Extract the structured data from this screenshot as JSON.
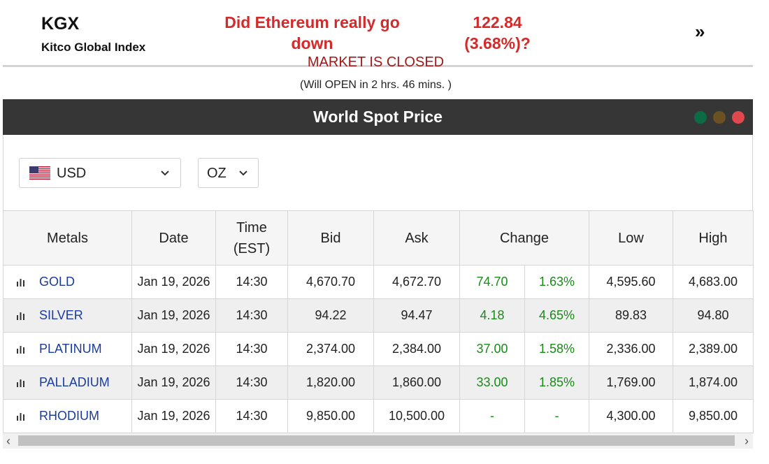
{
  "kgx": {
    "title": "KGX",
    "subtitle": "Kitco Global Index",
    "headline": "Did Ethereum really go down",
    "value": "122.84",
    "change": "(3.68%)?",
    "next_glyph": "»"
  },
  "widget": {
    "title": "World Spot Price",
    "dot_colors": [
      "#0b6b44",
      "#6b5121",
      "#e0484d"
    ],
    "currency": "USD",
    "unit": "OZ",
    "market_status": "MARKET IS CLOSED",
    "market_note": "(Will OPEN in 2 hrs. 46 mins. )",
    "status_color": "#a01818",
    "up_color": "#1a8a1a"
  },
  "table": {
    "headers": {
      "metals": "Metals",
      "date": "Date",
      "time_line1": "Time",
      "time_line2": "(EST)",
      "bid": "Bid",
      "ask": "Ask",
      "change": "Change",
      "low": "Low",
      "high": "High"
    },
    "rows": [
      {
        "metal": "GOLD",
        "date": "Jan 19, 2026",
        "time": "14:30",
        "bid": "4,670.70",
        "ask": "4,672.70",
        "change": "74.70",
        "pct": "1.63%",
        "low": "4,595.60",
        "high": "4,683.00"
      },
      {
        "metal": "SILVER",
        "date": "Jan 19, 2026",
        "time": "14:30",
        "bid": "94.22",
        "ask": "94.47",
        "change": "4.18",
        "pct": "4.65%",
        "low": "89.83",
        "high": "94.80"
      },
      {
        "metal": "PLATINUM",
        "date": "Jan 19, 2026",
        "time": "14:30",
        "bid": "2,374.00",
        "ask": "2,384.00",
        "change": "37.00",
        "pct": "1.58%",
        "low": "2,336.00",
        "high": "2,389.00"
      },
      {
        "metal": "PALLADIUM",
        "date": "Jan 19, 2026",
        "time": "14:30",
        "bid": "1,820.00",
        "ask": "1,860.00",
        "change": "33.00",
        "pct": "1.85%",
        "low": "1,769.00",
        "high": "1,874.00"
      },
      {
        "metal": "RHODIUM",
        "date": "Jan 19, 2026",
        "time": "14:30",
        "bid": "9,850.00",
        "ask": "10,500.00",
        "change": "-",
        "pct": "-",
        "low": "4,300.00",
        "high": "9,850.00"
      }
    ]
  },
  "icons": {
    "next": "double-chevron-right-icon",
    "chart": "bar-chart-icon",
    "dropdown": "chevron-down-icon",
    "flag": "us-flag-icon",
    "scroll_left": "chevron-left-icon",
    "scroll_right": "chevron-right-icon"
  }
}
